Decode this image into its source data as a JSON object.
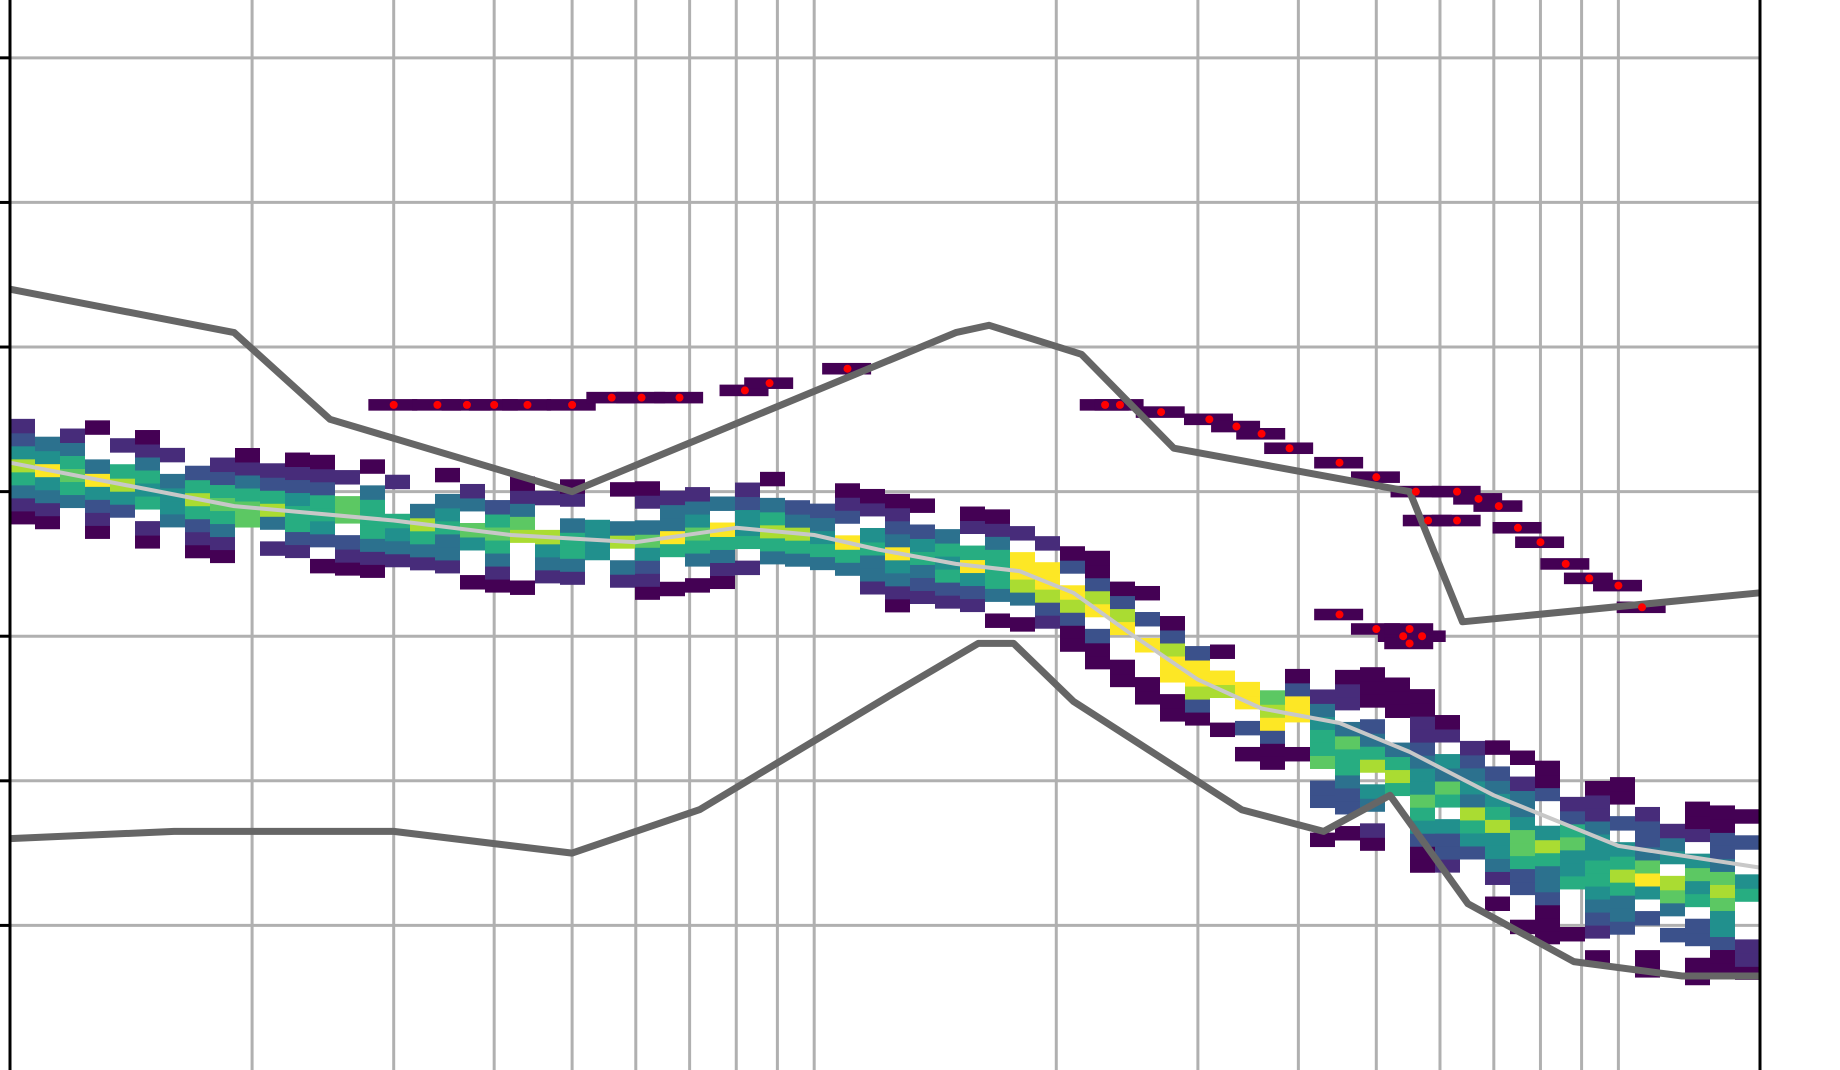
{
  "chart_data": {
    "type": "heatmap",
    "title": "",
    "xlabel": "",
    "ylabel": "",
    "x_scale": "log",
    "xlim": [
      1,
      150
    ],
    "ylim": [
      -6,
      1.4
    ],
    "grid": true,
    "x_grid_values": [
      2,
      3,
      4,
      5,
      6,
      7,
      8,
      9,
      10,
      20,
      30,
      40,
      50,
      60,
      70,
      80,
      90,
      100
    ],
    "y_grid_values": [
      -5,
      -4,
      -3,
      -2,
      -1,
      0,
      1
    ],
    "colormap": "viridis",
    "series": [
      {
        "role": "upper-envelope",
        "color": "#666666",
        "points": [
          [
            1,
            -0.6
          ],
          [
            1.9,
            -0.9
          ],
          [
            2.5,
            -1.5
          ],
          [
            5.0,
            -2.0
          ],
          [
            15.0,
            -0.9
          ],
          [
            16.5,
            -0.85
          ],
          [
            21.5,
            -1.05
          ],
          [
            28.0,
            -1.7
          ],
          [
            55.0,
            -2.0
          ],
          [
            64.0,
            -2.9
          ],
          [
            150,
            -2.7
          ]
        ]
      },
      {
        "role": "lower-envelope",
        "color": "#666666",
        "points": [
          [
            1,
            -4.4
          ],
          [
            1.6,
            -4.35
          ],
          [
            3.0,
            -4.35
          ],
          [
            5.0,
            -4.5
          ],
          [
            7.2,
            -4.2
          ],
          [
            12.5,
            -3.4
          ],
          [
            16.0,
            -3.05
          ],
          [
            17.7,
            -3.05
          ],
          [
            21.0,
            -3.45
          ],
          [
            34.0,
            -4.2
          ],
          [
            43.0,
            -4.35
          ],
          [
            52.0,
            -4.1
          ],
          [
            65.0,
            -4.85
          ],
          [
            88.0,
            -5.25
          ],
          [
            120.0,
            -5.35
          ],
          [
            150,
            -5.35
          ]
        ]
      },
      {
        "role": "median",
        "color": "#c8c8c8",
        "points": [
          [
            1,
            -1.8
          ],
          [
            1.9,
            -2.1
          ],
          [
            3.0,
            -2.2
          ],
          [
            4.2,
            -2.3
          ],
          [
            6.0,
            -2.35
          ],
          [
            8.0,
            -2.25
          ],
          [
            10.0,
            -2.3
          ],
          [
            12.0,
            -2.4
          ],
          [
            15.0,
            -2.5
          ],
          [
            18.0,
            -2.55
          ],
          [
            21.0,
            -2.7
          ],
          [
            25.0,
            -3.0
          ],
          [
            30.0,
            -3.3
          ],
          [
            36.0,
            -3.5
          ],
          [
            45.0,
            -3.6
          ],
          [
            55.0,
            -3.8
          ],
          [
            70.0,
            -4.1
          ],
          [
            100.0,
            -4.45
          ],
          [
            150,
            -4.6
          ]
        ]
      }
    ],
    "red_markers": [
      [
        3.0,
        -1.4
      ],
      [
        3.4,
        -1.4
      ],
      [
        3.7,
        -1.4
      ],
      [
        4.0,
        -1.4
      ],
      [
        4.4,
        -1.4
      ],
      [
        5.0,
        -1.4
      ],
      [
        5.6,
        -1.35
      ],
      [
        6.1,
        -1.35
      ],
      [
        6.8,
        -1.35
      ],
      [
        8.2,
        -1.3
      ],
      [
        8.8,
        -1.25
      ],
      [
        11.0,
        -1.15
      ],
      [
        23.0,
        -1.4
      ],
      [
        24.0,
        -1.4
      ],
      [
        27.0,
        -1.45
      ],
      [
        31.0,
        -1.5
      ],
      [
        33.5,
        -1.55
      ],
      [
        36.0,
        -1.6
      ],
      [
        39.0,
        -1.7
      ],
      [
        45.0,
        -1.8
      ],
      [
        50.0,
        -1.9
      ],
      [
        56.0,
        -2.0
      ],
      [
        58.0,
        -2.2
      ],
      [
        63.0,
        -2.0
      ],
      [
        63.0,
        -2.2
      ],
      [
        67.0,
        -2.05
      ],
      [
        71.0,
        -2.1
      ],
      [
        75.0,
        -2.25
      ],
      [
        80.0,
        -2.35
      ],
      [
        86.0,
        -2.5
      ],
      [
        92.0,
        -2.6
      ],
      [
        100.0,
        -2.65
      ],
      [
        107.0,
        -2.8
      ],
      [
        45.0,
        -2.85
      ],
      [
        50.0,
        -2.95
      ],
      [
        54.0,
        -3.0
      ],
      [
        55.0,
        -3.05
      ],
      [
        57.0,
        -3.0
      ],
      [
        55.0,
        -2.95
      ]
    ]
  }
}
